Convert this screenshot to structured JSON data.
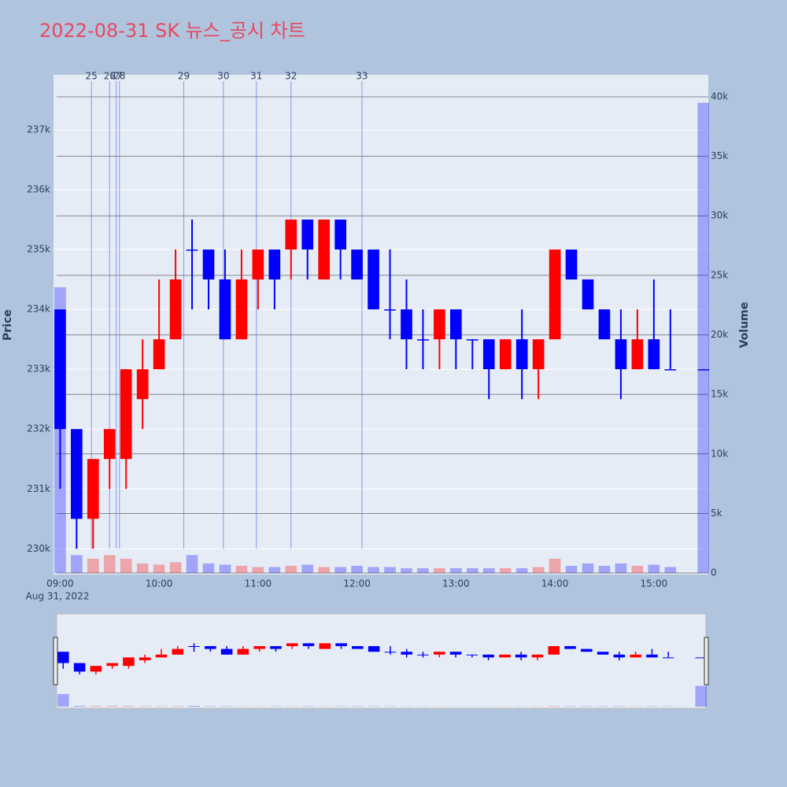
{
  "chart_data": {
    "type": "candlestick",
    "title": "2022-08-31 SK 뉴스_공시 차트",
    "y_title": "Price",
    "y2_title": "Volume",
    "x_date_label": "Aug 31, 2022",
    "increasing_color": "#ff0000",
    "decreasing_color": "#0000ff",
    "x": [
      "2022-08-31 09:00",
      "2022-08-31 09:10",
      "2022-08-31 09:20",
      "2022-08-31 09:30",
      "2022-08-31 09:40",
      "2022-08-31 09:50",
      "2022-08-31 10:00",
      "2022-08-31 10:10",
      "2022-08-31 10:20",
      "2022-08-31 10:30",
      "2022-08-31 10:40",
      "2022-08-31 10:50",
      "2022-08-31 11:00",
      "2022-08-31 11:10",
      "2022-08-31 11:20",
      "2022-08-31 11:30",
      "2022-08-31 11:40",
      "2022-08-31 11:50",
      "2022-08-31 12:00",
      "2022-08-31 12:10",
      "2022-08-31 12:20",
      "2022-08-31 12:30",
      "2022-08-31 12:40",
      "2022-08-31 12:50",
      "2022-08-31 13:00",
      "2022-08-31 13:10",
      "2022-08-31 13:20",
      "2022-08-31 13:30",
      "2022-08-31 13:40",
      "2022-08-31 13:50",
      "2022-08-31 14:00",
      "2022-08-31 14:10",
      "2022-08-31 14:20",
      "2022-08-31 14:30",
      "2022-08-31 14:40",
      "2022-08-31 14:50",
      "2022-08-31 15:00",
      "2022-08-31 15:10",
      "2022-08-31 15:30"
    ],
    "open": [
      234000,
      232000,
      230500,
      231500,
      231500,
      232500,
      233000,
      233500,
      235000,
      235000,
      234500,
      233500,
      234500,
      235000,
      235000,
      235500,
      234500,
      235500,
      235000,
      235000,
      234000,
      234000,
      233500,
      233500,
      234000,
      233500,
      233500,
      233000,
      233500,
      233000,
      233500,
      235000,
      234500,
      234000,
      233500,
      233000,
      233500,
      233000,
      233000
    ],
    "high": [
      234000,
      232000,
      231500,
      232000,
      233000,
      233500,
      234500,
      235000,
      235500,
      235000,
      235000,
      235000,
      235000,
      235000,
      235500,
      235500,
      235500,
      235500,
      235000,
      235000,
      235000,
      234500,
      234000,
      234000,
      234000,
      233500,
      233500,
      233500,
      234000,
      233500,
      235000,
      235000,
      234500,
      234000,
      234000,
      234000,
      234500,
      234000,
      233000
    ],
    "low": [
      231000,
      230000,
      230000,
      231000,
      231000,
      232000,
      233000,
      233500,
      234000,
      234000,
      233500,
      233500,
      234000,
      234000,
      234500,
      234500,
      234500,
      234500,
      234500,
      234000,
      233500,
      233000,
      233000,
      233000,
      233000,
      233000,
      232500,
      233000,
      232500,
      232500,
      233500,
      234500,
      234000,
      233500,
      232500,
      233000,
      233000,
      233000,
      233000
    ],
    "close": [
      232000,
      230500,
      231500,
      232000,
      233000,
      233000,
      233500,
      234500,
      235000,
      234500,
      233500,
      234500,
      235000,
      234500,
      235500,
      235000,
      235500,
      235000,
      234500,
      234000,
      234000,
      233500,
      233500,
      234000,
      233500,
      233500,
      233000,
      233500,
      233000,
      233500,
      235000,
      234500,
      234000,
      233500,
      233000,
      233500,
      233000,
      233000,
      233000
    ],
    "volume": [
      24000,
      1500,
      1200,
      1500,
      1200,
      800,
      700,
      900,
      1500,
      800,
      700,
      600,
      500,
      500,
      600,
      700,
      500,
      500,
      600,
      500,
      500,
      400,
      400,
      400,
      400,
      400,
      400,
      400,
      400,
      500,
      1200,
      600,
      800,
      600,
      800,
      600,
      700,
      500,
      39500
    ],
    "events": [
      {
        "x": "2022-08-31 09:19",
        "label": "25"
      },
      {
        "x": "2022-08-31 09:30",
        "label": "26"
      },
      {
        "x": "2022-08-31 09:34",
        "label": "27"
      },
      {
        "x": "2022-08-31 09:36",
        "label": "28"
      },
      {
        "x": "2022-08-31 10:15",
        "label": "29"
      },
      {
        "x": "2022-08-31 10:39",
        "label": "30"
      },
      {
        "x": "2022-08-31 10:59",
        "label": "31"
      },
      {
        "x": "2022-08-31 11:20",
        "label": "32"
      },
      {
        "x": "2022-08-31 12:03",
        "label": "33"
      }
    ],
    "xlim": [
      "2022-08-31 08:56",
      "2022-08-31 15:33"
    ],
    "xticks": [
      {
        "value": "2022-08-31 09:00",
        "label": "09:00"
      },
      {
        "value": "2022-08-31 10:00",
        "label": "10:00"
      },
      {
        "value": "2022-08-31 11:00",
        "label": "11:00"
      },
      {
        "value": "2022-08-31 12:00",
        "label": "12:00"
      },
      {
        "value": "2022-08-31 13:00",
        "label": "13:00"
      },
      {
        "value": "2022-08-31 14:00",
        "label": "14:00"
      },
      {
        "value": "2022-08-31 15:00",
        "label": "15:00"
      }
    ],
    "ylim": [
      229570,
      237920
    ],
    "yticks": [
      {
        "value": 230000,
        "label": "230k"
      },
      {
        "value": 231000,
        "label": "231k"
      },
      {
        "value": 232000,
        "label": "232k"
      },
      {
        "value": 233000,
        "label": "233k"
      },
      {
        "value": 234000,
        "label": "234k"
      },
      {
        "value": 235000,
        "label": "235k"
      },
      {
        "value": 236000,
        "label": "236k"
      },
      {
        "value": 237000,
        "label": "237k"
      }
    ],
    "y2lim": [
      -130,
      41850
    ],
    "y2ticks": [
      0,
      {
        "value": 5000,
        "label": "5k"
      },
      {
        "value": 10000,
        "label": "10k"
      },
      {
        "value": 15000,
        "label": "15k"
      },
      {
        "value": 20000,
        "label": "20k"
      },
      {
        "value": 25000,
        "label": "25k"
      },
      {
        "value": 30000,
        "label": "30k"
      },
      {
        "value": 35000,
        "label": "35k"
      },
      {
        "value": 40000,
        "label": "40k"
      }
    ],
    "grid": true,
    "rangeslider": true
  }
}
